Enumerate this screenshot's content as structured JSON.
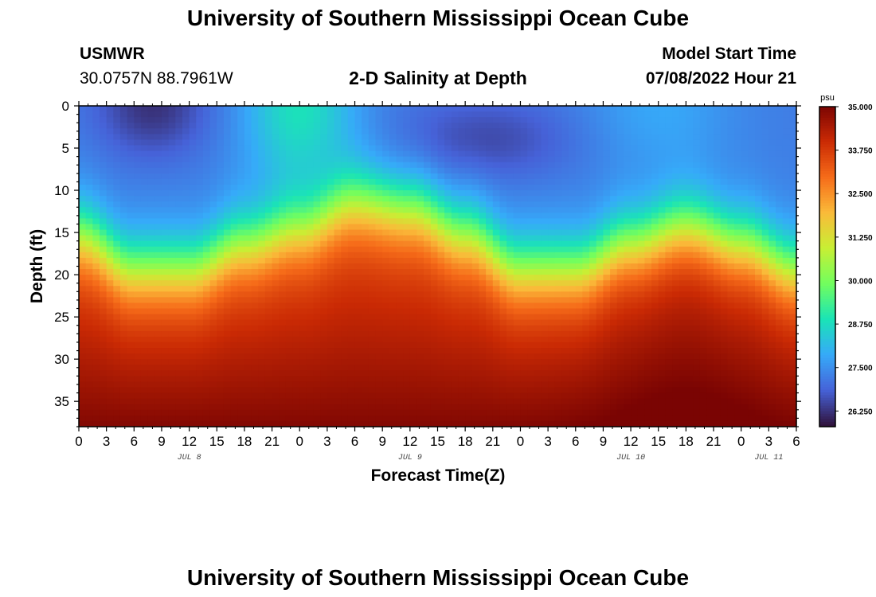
{
  "header": {
    "title": "University of Southern Mississippi Ocean Cube",
    "station": "USMWR",
    "coords": "30.0757N  88.7961W",
    "model_start_label": "Model Start Time",
    "model_start_value": "07/08/2022 Hour 21",
    "plot_title": "2-D Salinity at Depth"
  },
  "footer": {
    "title": "University of Southern Mississippi Ocean Cube"
  },
  "colors": {
    "scale": [
      "#30123b",
      "#4662d8",
      "#36aaf9",
      "#1ae4b6",
      "#72fe5e",
      "#c8ef34",
      "#faba39",
      "#f66b19",
      "#ca2a04",
      "#7a0403"
    ]
  },
  "chart_data": {
    "type": "heatmap",
    "title": "2-D Salinity at Depth",
    "xlabel": "Forecast Time(Z)",
    "ylabel": "Depth (ft)",
    "x_hours_from_start": [
      0,
      78
    ],
    "y_range_ft": [
      0,
      38
    ],
    "x_tick_labels": [
      "0",
      "3",
      "6",
      "9",
      "12",
      "15",
      "18",
      "21",
      "0",
      "3",
      "6",
      "9",
      "12",
      "15",
      "18",
      "21",
      "0",
      "3",
      "6",
      "9",
      "12",
      "15",
      "18",
      "21",
      "0",
      "3",
      "6"
    ],
    "y_ticks": [
      0,
      5,
      10,
      15,
      20,
      25,
      30,
      35
    ],
    "date_labels": [
      {
        "text": "JUL 8",
        "hour": 12
      },
      {
        "text": "JUL 9",
        "hour": 36
      },
      {
        "text": "JUL 10",
        "hour": 60
      },
      {
        "text": "JUL 11",
        "hour": 75
      }
    ],
    "colorbar": {
      "unit": "psu",
      "min": 25.8,
      "max": 35.0,
      "tick_labels": [
        "35.000",
        "33.750",
        "32.500",
        "31.250",
        "30.000",
        "28.750",
        "27.500",
        "26.250"
      ],
      "tick_values": [
        35.0,
        33.75,
        32.5,
        31.25,
        30.0,
        28.75,
        27.5,
        26.25
      ]
    },
    "field_description": {
      "surface_salinity_psu": [
        26.2,
        28.5
      ],
      "bottom_salinity_psu": [
        33.5,
        35.0
      ],
      "halocline_depth_ft_by_hour": [
        [
          0,
          15
        ],
        [
          6,
          19
        ],
        [
          12,
          19
        ],
        [
          18,
          16
        ],
        [
          24,
          14
        ],
        [
          30,
          11
        ],
        [
          36,
          12
        ],
        [
          42,
          15
        ],
        [
          48,
          19
        ],
        [
          54,
          19
        ],
        [
          60,
          16
        ],
        [
          66,
          14
        ],
        [
          72,
          16
        ],
        [
          78,
          19
        ]
      ]
    }
  }
}
